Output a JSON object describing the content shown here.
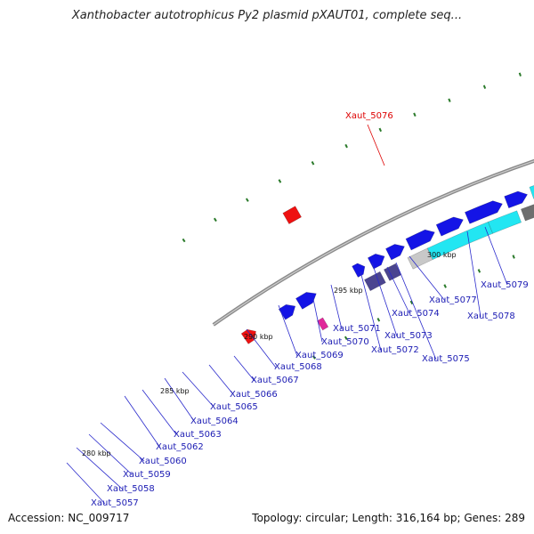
{
  "title": "Xanthobacter autotrophicus Py2 plasmid pXAUT01, complete seq...",
  "footer": {
    "accession": "Accession: NC_009717",
    "summary": "Topology: circular; Length: 316,164 bp; Genes: 289"
  },
  "scale_labels": [
    "280 kbp",
    "285 kbp",
    "290 kbp",
    "295 kbp",
    "300 kbp"
  ],
  "highlight_gene": {
    "label": "Xaut_5076",
    "color": "#ee0000"
  },
  "gene_labels": [
    "Xaut_5057",
    "Xaut_5058",
    "Xaut_5059",
    "Xaut_5060",
    "Xaut_5062",
    "Xaut_5063",
    "Xaut_5064",
    "Xaut_5065",
    "Xaut_5066",
    "Xaut_5067",
    "Xaut_5068",
    "Xaut_5069",
    "Xaut_5070",
    "Xaut_5071",
    "Xaut_5072",
    "Xaut_5073",
    "Xaut_5074",
    "Xaut_5075",
    "Xaut_5077",
    "Xaut_5078",
    "Xaut_5079"
  ],
  "colors": {
    "backbone": "#8a8a8a",
    "gene_blue": "#1414e6",
    "label_blue": "#1b1bb3",
    "gc_dots": "#2a7a2a",
    "red_feature": "#ee1111",
    "magenta_feature": "#e0289a",
    "cyan_feature": "#22e6f2",
    "lavender_feature": "#6a5acd",
    "dark_slate_feature": "#4b4590",
    "gray_feature": "#c8c8c8",
    "lime_feature": "#a8f23c",
    "dark_gray_feature": "#6e6e6e"
  }
}
